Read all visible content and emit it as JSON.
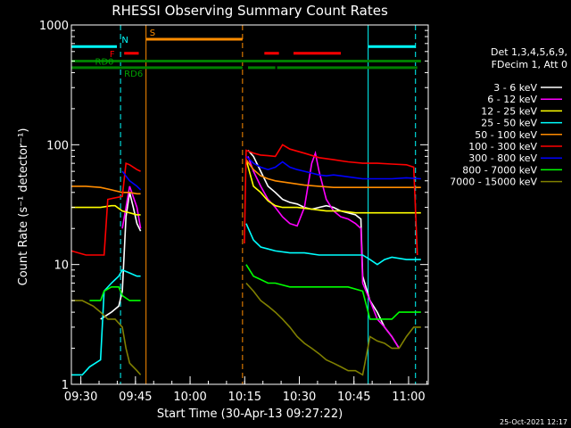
{
  "chart_data": {
    "type": "line",
    "title": "RHESSI Observing Summary Count Rates",
    "xlabel": "Start Time (30-Apr-13 09:27:22)",
    "ylabel": "Count Rate (s⁻¹ detector⁻¹)",
    "yscale": "log",
    "ylim": [
      1,
      1000
    ],
    "xlim_minutes": [
      0,
      98
    ],
    "x_ticks": [
      {
        "label": "09:30",
        "minute": 2.6
      },
      {
        "label": "09:45",
        "minute": 17.6
      },
      {
        "label": "10:00",
        "minute": 32.6
      },
      {
        "label": "10:15",
        "minute": 47.6
      },
      {
        "label": "10:30",
        "minute": 62.6
      },
      {
        "label": "10:45",
        "minute": 77.6
      },
      {
        "label": "11:00",
        "minute": 92.6
      }
    ],
    "y_ticks": [
      "1",
      "10",
      "100",
      "1000"
    ],
    "legend_header": [
      "Det 1,3,4,5,6,9,",
      "FDecim 1, Att 0"
    ],
    "legend_position": "right",
    "timestamp": "25-Oct-2021 12:17",
    "flag_labels": {
      "N": "N",
      "RD0": "RD0",
      "RD6": "RD6",
      "F": "F",
      "S": "S"
    },
    "gaps_minutes": [
      [
        20.5,
        47.0
      ]
    ],
    "vlines": [
      {
        "minute": 13.5,
        "color": "#00ffff",
        "style": "dashed"
      },
      {
        "minute": 20.5,
        "color": "#ff8c00",
        "style": "solid"
      },
      {
        "minute": 47.0,
        "color": "#ff8c00",
        "style": "dashed"
      },
      {
        "minute": 81.5,
        "color": "#00ffff",
        "style": "solid"
      },
      {
        "minute": 94.5,
        "color": "#00ffff",
        "style": "dashed"
      }
    ],
    "flags": [
      {
        "name": "N",
        "color": "#00ffff",
        "level": 660,
        "segments": [
          [
            0,
            12.5
          ],
          [
            81.5,
            94.5
          ]
        ]
      },
      {
        "name": "S",
        "color": "#ff8c00",
        "level": 760,
        "segments": [
          [
            20.5,
            47.0
          ]
        ]
      },
      {
        "name": "F",
        "color": "#ff0000",
        "level": 580,
        "segments": [
          [
            14.5,
            18.5
          ],
          [
            53,
            57
          ],
          [
            61,
            74
          ]
        ]
      },
      {
        "name": "RD0",
        "color": "#008000",
        "level": 500,
        "segments": [
          [
            0,
            96
          ]
        ]
      },
      {
        "name": "RD6",
        "color": "#008000",
        "level": 440,
        "segments": [
          [
            0,
            47
          ],
          [
            48.5,
            56
          ],
          [
            56.5,
            95
          ]
        ]
      }
    ],
    "series": [
      {
        "name": "3 - 6 keV",
        "color": "#ffffff",
        "values_a": [
          [
            8,
            3.5
          ],
          [
            11,
            4
          ],
          [
            13,
            4.5
          ],
          [
            14,
            6
          ],
          [
            15,
            25
          ],
          [
            16,
            40
          ],
          [
            17,
            30
          ],
          [
            18,
            22
          ],
          [
            19,
            19
          ]
        ],
        "values_b": [
          [
            48.5,
            90
          ],
          [
            50,
            80
          ],
          [
            52,
            60
          ],
          [
            54,
            45
          ],
          [
            56,
            40
          ],
          [
            58,
            35
          ],
          [
            60,
            33
          ],
          [
            62,
            32
          ],
          [
            64,
            30
          ],
          [
            66,
            29
          ],
          [
            68,
            30
          ],
          [
            70,
            31
          ],
          [
            72,
            30
          ],
          [
            74,
            28
          ],
          [
            76,
            27
          ],
          [
            78,
            26
          ],
          [
            79.5,
            24
          ],
          [
            80,
            8
          ],
          [
            82,
            5
          ],
          [
            84,
            4
          ],
          [
            86,
            3
          ],
          [
            88,
            2.5
          ],
          [
            90,
            2
          ]
        ]
      },
      {
        "name": "6 - 12 keV",
        "color": "#ff00ff",
        "values_a": [
          [
            14,
            20
          ],
          [
            16,
            45
          ],
          [
            18,
            30
          ],
          [
            19,
            20
          ]
        ],
        "values_b": [
          [
            48.5,
            80
          ],
          [
            50,
            60
          ],
          [
            52,
            45
          ],
          [
            54,
            35
          ],
          [
            56,
            30
          ],
          [
            58,
            25
          ],
          [
            60,
            22
          ],
          [
            62,
            21
          ],
          [
            64,
            30
          ],
          [
            66,
            70
          ],
          [
            67,
            85
          ],
          [
            68,
            60
          ],
          [
            70,
            35
          ],
          [
            72,
            28
          ],
          [
            74,
            25
          ],
          [
            76,
            24
          ],
          [
            78,
            22
          ],
          [
            79.5,
            20
          ],
          [
            80,
            7
          ],
          [
            82,
            5
          ],
          [
            84,
            3.5
          ],
          [
            86,
            3
          ],
          [
            88,
            2.5
          ],
          [
            90,
            2
          ]
        ]
      },
      {
        "name": "12 - 25 keV",
        "color": "#ffff00",
        "values_a": [
          [
            0,
            30
          ],
          [
            4,
            30
          ],
          [
            8,
            30
          ],
          [
            11,
            31
          ],
          [
            12,
            31
          ],
          [
            14,
            28
          ],
          [
            16,
            27
          ],
          [
            18,
            26
          ],
          [
            19,
            26
          ]
        ],
        "values_b": [
          [
            48,
            75
          ],
          [
            50,
            45
          ],
          [
            52,
            40
          ],
          [
            54,
            34
          ],
          [
            56,
            31
          ],
          [
            58,
            30
          ],
          [
            62,
            30
          ],
          [
            66,
            29
          ],
          [
            70,
            28
          ],
          [
            74,
            28
          ],
          [
            78,
            27
          ],
          [
            80,
            27
          ],
          [
            84,
            27
          ],
          [
            88,
            27
          ],
          [
            92,
            27
          ],
          [
            96,
            27
          ]
        ]
      },
      {
        "name": "25 - 50 keV",
        "color": "#00ffff",
        "values_a": [
          [
            0,
            1.2
          ],
          [
            3,
            1.2
          ],
          [
            5,
            1.4
          ],
          [
            8,
            1.6
          ],
          [
            9,
            6
          ],
          [
            11,
            7
          ],
          [
            13,
            8
          ],
          [
            14,
            9
          ],
          [
            16,
            8.5
          ],
          [
            18,
            8
          ],
          [
            19,
            8
          ]
        ],
        "values_b": [
          [
            48,
            22
          ],
          [
            50,
            16
          ],
          [
            52,
            14
          ],
          [
            54,
            13.5
          ],
          [
            56,
            13
          ],
          [
            60,
            12.5
          ],
          [
            64,
            12.5
          ],
          [
            68,
            12
          ],
          [
            72,
            12
          ],
          [
            76,
            12
          ],
          [
            78,
            12
          ],
          [
            80,
            12
          ],
          [
            82,
            11
          ],
          [
            84,
            10
          ],
          [
            86,
            11
          ],
          [
            88,
            11.5
          ],
          [
            92,
            11
          ],
          [
            96,
            11
          ]
        ]
      },
      {
        "name": "50 - 100 keV",
        "color": "#ff8c00",
        "values_a": [
          [
            0,
            45
          ],
          [
            4,
            45
          ],
          [
            8,
            44
          ],
          [
            11,
            42
          ],
          [
            14,
            40
          ],
          [
            16,
            40
          ],
          [
            18,
            39
          ],
          [
            19,
            39
          ]
        ],
        "values_b": [
          [
            48,
            75
          ],
          [
            50,
            62
          ],
          [
            52,
            55
          ],
          [
            54,
            52
          ],
          [
            56,
            50
          ],
          [
            60,
            48
          ],
          [
            64,
            46
          ],
          [
            68,
            45
          ],
          [
            72,
            44
          ],
          [
            76,
            44
          ],
          [
            80,
            44
          ],
          [
            84,
            44
          ],
          [
            88,
            44
          ],
          [
            92,
            44
          ],
          [
            96,
            44
          ]
        ]
      },
      {
        "name": "100 - 300 keV",
        "color": "#ff0000",
        "values_a": [
          [
            0,
            13
          ],
          [
            4,
            12
          ],
          [
            8,
            12
          ],
          [
            9,
            12
          ],
          [
            10,
            35
          ],
          [
            12,
            36
          ],
          [
            14,
            37
          ],
          [
            15,
            70
          ],
          [
            16,
            68
          ],
          [
            18,
            62
          ],
          [
            19,
            60
          ]
        ],
        "values_b": [
          [
            47.5,
            15
          ],
          [
            48,
            90
          ],
          [
            50,
            85
          ],
          [
            52,
            82
          ],
          [
            54,
            81
          ],
          [
            56,
            80
          ],
          [
            58,
            100
          ],
          [
            60,
            92
          ],
          [
            64,
            85
          ],
          [
            68,
            78
          ],
          [
            72,
            75
          ],
          [
            76,
            72
          ],
          [
            80,
            70
          ],
          [
            84,
            70
          ],
          [
            88,
            69
          ],
          [
            92,
            68
          ],
          [
            94,
            65
          ],
          [
            95,
            12
          ]
        ]
      },
      {
        "name": "300 - 800 keV",
        "color": "#0000ff",
        "values_a": [
          [
            14,
            60
          ],
          [
            16,
            50
          ],
          [
            18,
            45
          ],
          [
            19,
            42
          ]
        ],
        "values_b": [
          [
            48,
            80
          ],
          [
            50,
            70
          ],
          [
            52,
            65
          ],
          [
            54,
            62
          ],
          [
            56,
            65
          ],
          [
            58,
            72
          ],
          [
            60,
            65
          ],
          [
            62,
            62
          ],
          [
            64,
            60
          ],
          [
            66,
            58
          ],
          [
            68,
            56
          ],
          [
            70,
            55
          ],
          [
            72,
            56
          ],
          [
            74,
            55
          ],
          [
            76,
            54
          ],
          [
            78,
            53
          ],
          [
            80,
            52
          ],
          [
            84,
            52
          ],
          [
            88,
            52
          ],
          [
            92,
            53
          ],
          [
            96,
            52
          ]
        ]
      },
      {
        "name": "800 - 7000 keV",
        "color": "#00ff00",
        "values_a": [
          [
            5,
            5
          ],
          [
            8,
            5
          ],
          [
            9,
            6
          ],
          [
            11,
            6.5
          ],
          [
            13,
            6.5
          ],
          [
            14,
            5.5
          ],
          [
            16,
            5
          ],
          [
            18,
            5
          ],
          [
            19,
            5
          ]
        ],
        "values_b": [
          [
            48,
            10
          ],
          [
            50,
            8
          ],
          [
            52,
            7.5
          ],
          [
            54,
            7
          ],
          [
            56,
            7
          ],
          [
            60,
            6.5
          ],
          [
            64,
            6.5
          ],
          [
            68,
            6.5
          ],
          [
            72,
            6.5
          ],
          [
            76,
            6.5
          ],
          [
            80,
            6
          ],
          [
            82,
            3.5
          ],
          [
            86,
            3.5
          ],
          [
            88,
            3.5
          ],
          [
            90,
            4
          ],
          [
            92,
            4
          ],
          [
            94,
            4
          ],
          [
            96,
            4
          ]
        ]
      },
      {
        "name": "7000 - 15000 keV",
        "color": "#808000",
        "values_a": [
          [
            0,
            5
          ],
          [
            3,
            5
          ],
          [
            6,
            4.5
          ],
          [
            8,
            4
          ],
          [
            10,
            3.5
          ],
          [
            12,
            3.5
          ],
          [
            14,
            3
          ],
          [
            15,
            2
          ],
          [
            16,
            1.5
          ],
          [
            18,
            1.3
          ],
          [
            19,
            1.2
          ]
        ],
        "values_b": [
          [
            48,
            7
          ],
          [
            50,
            6
          ],
          [
            52,
            5
          ],
          [
            54,
            4.5
          ],
          [
            56,
            4
          ],
          [
            58,
            3.5
          ],
          [
            60,
            3
          ],
          [
            62,
            2.5
          ],
          [
            64,
            2.2
          ],
          [
            66,
            2
          ],
          [
            68,
            1.8
          ],
          [
            70,
            1.6
          ],
          [
            72,
            1.5
          ],
          [
            74,
            1.4
          ],
          [
            76,
            1.3
          ],
          [
            78,
            1.3
          ],
          [
            80,
            1.2
          ],
          [
            82,
            2.5
          ],
          [
            84,
            2.3
          ],
          [
            86,
            2.2
          ],
          [
            88,
            2
          ],
          [
            90,
            2
          ],
          [
            92,
            2.5
          ],
          [
            94,
            3
          ],
          [
            96,
            3
          ]
        ]
      }
    ]
  }
}
